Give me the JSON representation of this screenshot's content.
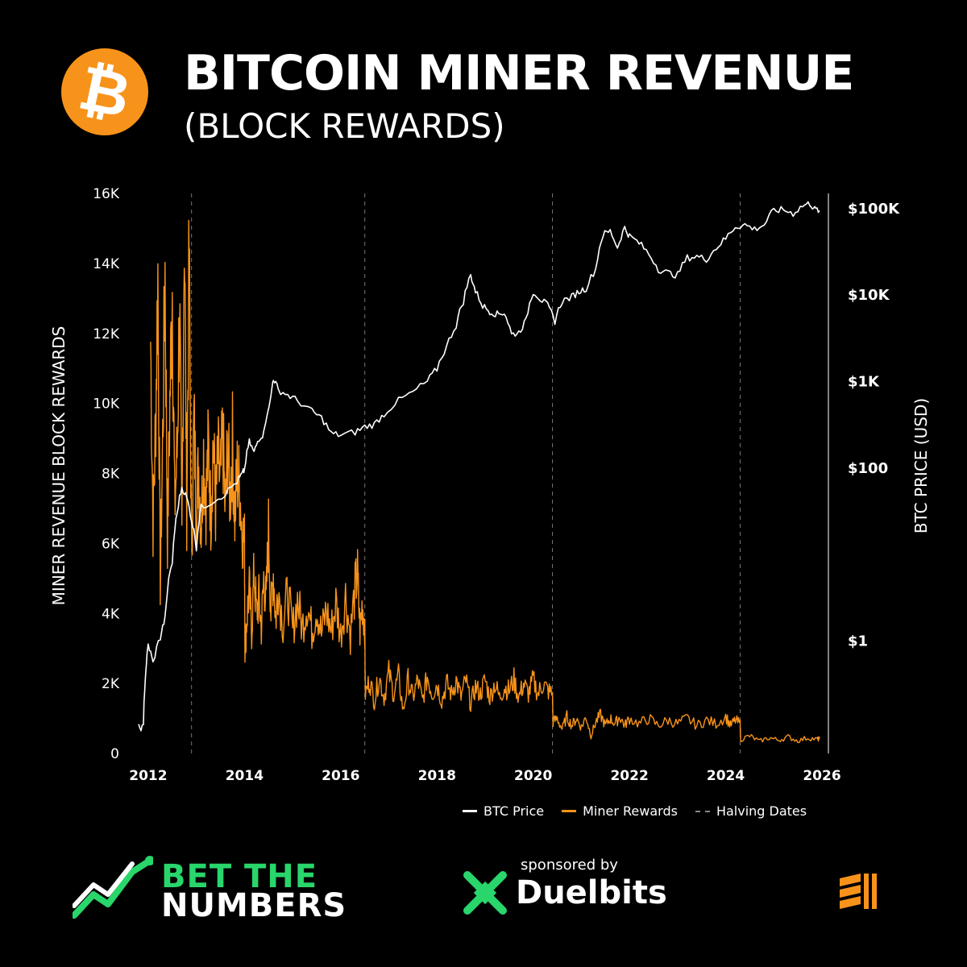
{
  "header": {
    "title": "BITCOIN MINER REVENUE",
    "subtitle": "(BLOCK REWARDS)"
  },
  "colors": {
    "background": "#000000",
    "miner_rewards": "#f7931a",
    "btc_price": "#ffffff",
    "halving": "#777777",
    "brand_green": "#29d66b"
  },
  "chart_data": {
    "type": "line",
    "title": "BITCOIN MINER REVENUE",
    "subtitle": "(BLOCK REWARDS)",
    "x_ticks": [
      "2012",
      "2014",
      "2016",
      "2018",
      "2020",
      "2022",
      "2024",
      "2026"
    ],
    "xlim": [
      2011.8,
      2026.0
    ],
    "left_axis": {
      "label": "MINER REVENUE BLOCK REWARDS",
      "ylim": [
        0,
        16000
      ],
      "ticks": [
        {
          "value": 0,
          "label": "0"
        },
        {
          "value": 2000,
          "label": "2K"
        },
        {
          "value": 4000,
          "label": "4K"
        },
        {
          "value": 6000,
          "label": "6K"
        },
        {
          "value": 8000,
          "label": "8K"
        },
        {
          "value": 10000,
          "label": "10K"
        },
        {
          "value": 12000,
          "label": "12K"
        },
        {
          "value": 14000,
          "label": "14K"
        },
        {
          "value": 16000,
          "label": "16K"
        }
      ]
    },
    "right_axis": {
      "label": "BTC PRICE (USD)",
      "scale": "log",
      "ylim": [
        0.05,
        150000
      ],
      "ticks": [
        {
          "value": 1,
          "label": "$1"
        },
        {
          "value": 100,
          "label": "$100"
        },
        {
          "value": 1000,
          "label": "$1K"
        },
        {
          "value": 10000,
          "label": "$10K"
        },
        {
          "value": 100000,
          "label": "$100K"
        }
      ]
    },
    "halving_dates": [
      2012.9,
      2016.5,
      2020.4,
      2024.3
    ],
    "series": [
      {
        "name": "BTC Price",
        "color": "#ffffff",
        "axis": "right",
        "points": [
          [
            2011.8,
            0.1
          ],
          [
            2011.9,
            0.1
          ],
          [
            2011.95,
            0.45
          ],
          [
            2012.0,
            0.9
          ],
          [
            2012.1,
            0.55
          ],
          [
            2012.25,
            1.1
          ],
          [
            2012.35,
            1.8
          ],
          [
            2012.5,
            8
          ],
          [
            2012.6,
            30
          ],
          [
            2012.7,
            60
          ],
          [
            2012.8,
            45
          ],
          [
            2012.9,
            25
          ],
          [
            2013.0,
            12
          ],
          [
            2013.1,
            35
          ],
          [
            2013.3,
            40
          ],
          [
            2013.6,
            50
          ],
          [
            2013.85,
            70
          ],
          [
            2013.95,
            85
          ],
          [
            2014.0,
            95
          ],
          [
            2014.1,
            200
          ],
          [
            2014.2,
            150
          ],
          [
            2014.3,
            220
          ],
          [
            2014.4,
            250
          ],
          [
            2014.55,
            650
          ],
          [
            2014.6,
            1100
          ],
          [
            2014.7,
            800
          ],
          [
            2014.9,
            700
          ],
          [
            2015.1,
            600
          ],
          [
            2015.4,
            450
          ],
          [
            2015.6,
            380
          ],
          [
            2015.8,
            250
          ],
          [
            2016.0,
            240
          ],
          [
            2016.3,
            260
          ],
          [
            2016.5,
            300
          ],
          [
            2016.7,
            320
          ],
          [
            2016.9,
            420
          ],
          [
            2017.2,
            600
          ],
          [
            2017.5,
            750
          ],
          [
            2017.8,
            1000
          ],
          [
            2018.0,
            1400
          ],
          [
            2018.2,
            2500
          ],
          [
            2018.4,
            4500
          ],
          [
            2018.55,
            8500
          ],
          [
            2018.7,
            17000
          ],
          [
            2018.8,
            11000
          ],
          [
            2018.95,
            7500
          ],
          [
            2019.1,
            6500
          ],
          [
            2019.25,
            6000
          ],
          [
            2019.4,
            6300
          ],
          [
            2019.55,
            3500
          ],
          [
            2019.7,
            3700
          ],
          [
            2019.85,
            5000
          ],
          [
            2020.0,
            11000
          ],
          [
            2020.15,
            9000
          ],
          [
            2020.3,
            7500
          ],
          [
            2020.45,
            5000
          ],
          [
            2020.6,
            8500
          ],
          [
            2020.8,
            9500
          ],
          [
            2020.95,
            11000
          ],
          [
            2021.1,
            12000
          ],
          [
            2021.3,
            20000
          ],
          [
            2021.45,
            50000
          ],
          [
            2021.6,
            55000
          ],
          [
            2021.75,
            35000
          ],
          [
            2021.9,
            60000
          ],
          [
            2022.0,
            48000
          ],
          [
            2022.2,
            40000
          ],
          [
            2022.4,
            30000
          ],
          [
            2022.6,
            20000
          ],
          [
            2022.8,
            18000
          ],
          [
            2023.0,
            17000
          ],
          [
            2023.2,
            27000
          ],
          [
            2023.4,
            28000
          ],
          [
            2023.6,
            26000
          ],
          [
            2023.8,
            35000
          ],
          [
            2024.0,
            45000
          ],
          [
            2024.2,
            62000
          ],
          [
            2024.4,
            65000
          ],
          [
            2024.6,
            58000
          ],
          [
            2024.8,
            65000
          ],
          [
            2025.0,
            95000
          ],
          [
            2025.2,
            97000
          ],
          [
            2025.4,
            88000
          ],
          [
            2025.6,
            108000
          ],
          [
            2025.75,
            115000
          ],
          [
            2025.85,
            98000
          ],
          [
            2025.95,
            95000
          ]
        ]
      },
      {
        "name": "Miner Rewards",
        "color": "#f7931a",
        "axis": "left",
        "points": [
          [
            2012.05,
            11800
          ],
          [
            2012.1,
            6600
          ],
          [
            2012.15,
            9200
          ],
          [
            2012.2,
            13700
          ],
          [
            2012.25,
            4900
          ],
          [
            2012.3,
            9000
          ],
          [
            2012.35,
            13800
          ],
          [
            2012.4,
            6200
          ],
          [
            2012.45,
            10000
          ],
          [
            2012.5,
            13400
          ],
          [
            2012.55,
            7000
          ],
          [
            2012.6,
            8600
          ],
          [
            2012.65,
            12900
          ],
          [
            2012.7,
            6000
          ],
          [
            2012.75,
            15400
          ],
          [
            2012.8,
            7000
          ],
          [
            2012.85,
            14200
          ],
          [
            2012.9,
            5500
          ],
          [
            2012.95,
            9500
          ],
          [
            2013.0,
            7000
          ],
          [
            2013.05,
            8200
          ],
          [
            2013.1,
            6500
          ],
          [
            2013.15,
            8600
          ],
          [
            2013.2,
            7200
          ],
          [
            2013.25,
            8800
          ],
          [
            2013.3,
            6800
          ],
          [
            2013.35,
            9000
          ],
          [
            2013.4,
            7000
          ],
          [
            2013.45,
            8400
          ],
          [
            2013.5,
            7600
          ],
          [
            2013.55,
            9100
          ],
          [
            2013.6,
            6800
          ],
          [
            2013.65,
            8800
          ],
          [
            2013.7,
            7300
          ],
          [
            2013.75,
            8900
          ],
          [
            2013.8,
            6700
          ],
          [
            2013.85,
            8000
          ],
          [
            2013.9,
            7600
          ],
          [
            2013.95,
            6400
          ],
          [
            2014.0,
            6000
          ],
          [
            2014.01,
            3000
          ],
          [
            2014.05,
            3900
          ],
          [
            2014.1,
            4700
          ],
          [
            2014.15,
            3500
          ],
          [
            2014.2,
            5200
          ],
          [
            2014.25,
            4000
          ],
          [
            2014.3,
            4400
          ],
          [
            2014.35,
            3600
          ],
          [
            2014.4,
            5000
          ],
          [
            2014.45,
            4300
          ],
          [
            2014.5,
            6400
          ],
          [
            2014.55,
            4000
          ],
          [
            2014.6,
            5200
          ],
          [
            2014.65,
            3800
          ],
          [
            2014.7,
            4800
          ],
          [
            2014.8,
            3700
          ],
          [
            2014.9,
            4600
          ],
          [
            2015.0,
            3500
          ],
          [
            2015.1,
            4400
          ],
          [
            2015.2,
            3600
          ],
          [
            2015.3,
            4300
          ],
          [
            2015.4,
            3500
          ],
          [
            2015.5,
            4200
          ],
          [
            2015.6,
            3400
          ],
          [
            2015.7,
            4100
          ],
          [
            2015.8,
            3500
          ],
          [
            2015.9,
            4300
          ],
          [
            2016.0,
            3400
          ],
          [
            2016.1,
            4500
          ],
          [
            2016.2,
            3400
          ],
          [
            2016.3,
            4700
          ],
          [
            2016.35,
            5100
          ],
          [
            2016.4,
            3500
          ],
          [
            2016.45,
            4300
          ],
          [
            2016.5,
            3600
          ],
          [
            2016.51,
            1700
          ],
          [
            2016.6,
            2100
          ],
          [
            2016.7,
            1500
          ],
          [
            2016.8,
            2200
          ],
          [
            2016.9,
            1600
          ],
          [
            2017.0,
            2300
          ],
          [
            2017.1,
            1700
          ],
          [
            2017.2,
            2200
          ],
          [
            2017.3,
            1200
          ],
          [
            2017.4,
            2100
          ],
          [
            2017.5,
            1600
          ],
          [
            2017.6,
            2100
          ],
          [
            2017.7,
            1500
          ],
          [
            2017.8,
            2200
          ],
          [
            2017.9,
            1700
          ],
          [
            2018.0,
            2000
          ],
          [
            2018.1,
            1500
          ],
          [
            2018.2,
            2000
          ],
          [
            2018.3,
            1700
          ],
          [
            2018.4,
            2100
          ],
          [
            2018.5,
            1600
          ],
          [
            2018.6,
            2100
          ],
          [
            2018.7,
            1400
          ],
          [
            2018.8,
            1900
          ],
          [
            2018.9,
            1700
          ],
          [
            2019.0,
            2100
          ],
          [
            2019.1,
            1600
          ],
          [
            2019.2,
            2000
          ],
          [
            2019.3,
            1600
          ],
          [
            2019.4,
            1900
          ],
          [
            2019.5,
            1800
          ],
          [
            2019.6,
            2100
          ],
          [
            2019.7,
            1600
          ],
          [
            2019.8,
            2000
          ],
          [
            2019.9,
            1700
          ],
          [
            2020.0,
            2100
          ],
          [
            2020.1,
            1700
          ],
          [
            2020.2,
            2000
          ],
          [
            2020.3,
            1800
          ],
          [
            2020.4,
            1700
          ],
          [
            2020.41,
            900
          ],
          [
            2020.5,
            1000
          ],
          [
            2020.6,
            700
          ],
          [
            2020.7,
            1050
          ],
          [
            2020.8,
            800
          ],
          [
            2020.9,
            1000
          ],
          [
            2021.0,
            750
          ],
          [
            2021.1,
            1050
          ],
          [
            2021.2,
            500
          ],
          [
            2021.3,
            900
          ],
          [
            2021.4,
            1100
          ],
          [
            2021.5,
            800
          ],
          [
            2021.6,
            1000
          ],
          [
            2021.7,
            850
          ],
          [
            2021.8,
            1050
          ],
          [
            2021.9,
            800
          ],
          [
            2022.0,
            1000
          ],
          [
            2022.2,
            850
          ],
          [
            2022.4,
            1000
          ],
          [
            2022.6,
            800
          ],
          [
            2022.8,
            950
          ],
          [
            2023.0,
            850
          ],
          [
            2023.2,
            1000
          ],
          [
            2023.4,
            800
          ],
          [
            2023.6,
            950
          ],
          [
            2023.8,
            850
          ],
          [
            2024.0,
            1050
          ],
          [
            2024.1,
            800
          ],
          [
            2024.2,
            950
          ],
          [
            2024.3,
            850
          ],
          [
            2024.31,
            400
          ],
          [
            2024.5,
            500
          ],
          [
            2024.7,
            350
          ],
          [
            2024.9,
            450
          ],
          [
            2025.1,
            380
          ],
          [
            2025.3,
            470
          ],
          [
            2025.5,
            360
          ],
          [
            2025.7,
            450
          ],
          [
            2025.9,
            400
          ],
          [
            2025.95,
            420
          ]
        ]
      }
    ],
    "legend": {
      "placement": "bottom-right",
      "entries": [
        "BTC Price",
        "Miner Rewards",
        "Halving Dates"
      ]
    }
  },
  "footer": {
    "brand_line1": "BET THE",
    "brand_line2": "NUMBERS",
    "sponsored_by": "sponsored by",
    "sponsor_name": "Duelbits"
  }
}
